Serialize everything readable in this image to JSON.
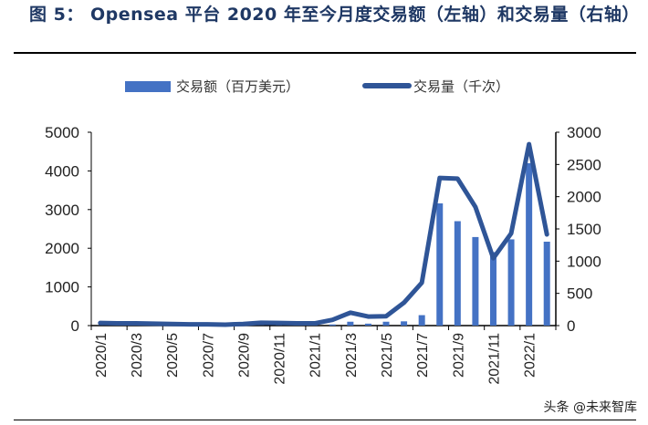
{
  "title": "图 5： Opensea 平台 2020 年至今月度交易额（左轴）和交易量（右轴）",
  "watermark": "头条 @未来智库",
  "colors": {
    "bar": "#4472C4",
    "line": "#2F5597",
    "title": "#1F3864"
  },
  "chart_data": {
    "type": "bar+line",
    "categories": [
      "2020/1",
      "2020/2",
      "2020/3",
      "2020/4",
      "2020/5",
      "2020/6",
      "2020/7",
      "2020/8",
      "2020/9",
      "2020/10",
      "2020/11",
      "2020/12",
      "2021/1",
      "2021/2",
      "2021/3",
      "2021/4",
      "2021/5",
      "2021/6",
      "2021/7",
      "2021/8",
      "2021/9",
      "2021/10",
      "2021/11",
      "2021/12",
      "2022/1",
      "2022/2"
    ],
    "x_tick_labels": [
      "2020/1",
      "2020/3",
      "2020/5",
      "2020/7",
      "2020/9",
      "2020/11",
      "2021/1",
      "2021/3",
      "2021/5",
      "2021/7",
      "2021/9",
      "2021/11",
      "2022/1"
    ],
    "series": [
      {
        "name": "交易额（百万美元）",
        "type": "bar",
        "axis": "left",
        "values": [
          2,
          2,
          2,
          2,
          2,
          2,
          2,
          2,
          3,
          3,
          4,
          6,
          8,
          30,
          100,
          50,
          100,
          110,
          270,
          3160,
          2700,
          2290,
          1900,
          2230,
          4200,
          2170
        ]
      },
      {
        "name": "交易量（千次）",
        "type": "line",
        "axis": "right",
        "values": [
          40,
          35,
          35,
          30,
          25,
          20,
          20,
          15,
          25,
          45,
          40,
          35,
          35,
          90,
          200,
          140,
          145,
          355,
          665,
          2290,
          2280,
          1840,
          1045,
          1430,
          2815,
          1415
        ]
      }
    ],
    "y_left": {
      "range": [
        0,
        5000
      ],
      "ticks": [
        "0",
        "1000",
        "2000",
        "3000",
        "4000",
        "5000"
      ]
    },
    "y_right": {
      "range": [
        0,
        3000
      ],
      "ticks": [
        "0",
        "500",
        "1000",
        "1500",
        "2000",
        "2500",
        "3000"
      ]
    },
    "legend": "top",
    "grid": false
  }
}
